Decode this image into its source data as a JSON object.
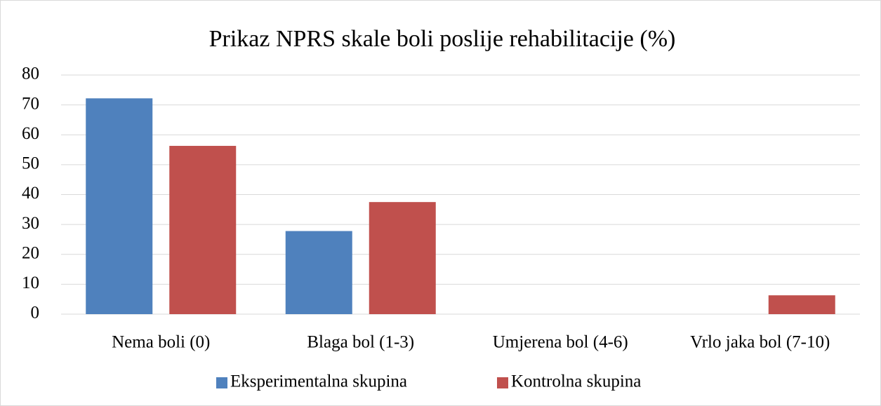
{
  "chart_data": {
    "type": "bar",
    "title": "Prikaz NPRS skale boli poslije rehabilitacije (%)",
    "categories": [
      "Nema boli (0)",
      "Blaga bol (1-3)",
      "Umjerena bol (4-6)",
      "Vrlo jaka bol (7-10)"
    ],
    "series": [
      {
        "name": "Eksperimentalna skupina",
        "color": "#4f81bd",
        "values": [
          72.2,
          27.8,
          0,
          0
        ]
      },
      {
        "name": "Kontrolna skupina",
        "color": "#c0504d",
        "values": [
          56.3,
          37.5,
          0,
          6.3
        ]
      }
    ],
    "ylim": [
      0,
      80
    ],
    "yticks": [
      0,
      10,
      20,
      30,
      40,
      50,
      60,
      70,
      80
    ],
    "grid": true,
    "legend": "bottom"
  }
}
